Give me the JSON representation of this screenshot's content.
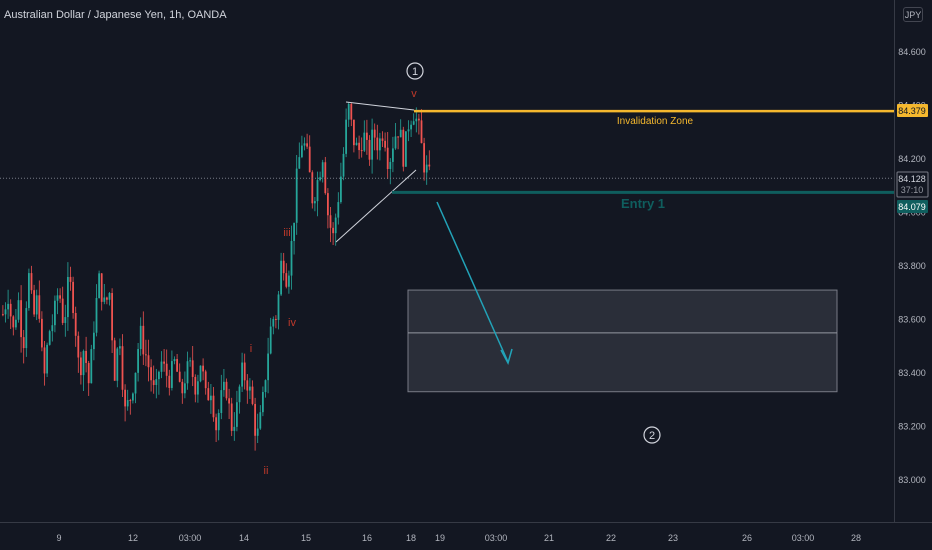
{
  "header": {
    "title": "Australian Dollar / Japanese Yen, 1h, OANDA",
    "currency_badge": "JPY"
  },
  "chart_data": {
    "type": "candlestick",
    "title": "Australian Dollar / Japanese Yen, 1h, OANDA",
    "ylim": [
      82.93,
      84.73
    ],
    "y_ticks": [
      "84.600",
      "84.400",
      "84.200",
      "84.000",
      "83.800",
      "83.600",
      "83.400",
      "83.200",
      "83.000"
    ],
    "y_tick_values": [
      84.6,
      84.4,
      84.2,
      84.0,
      83.8,
      83.6,
      83.4,
      83.2,
      83.0
    ],
    "x_ticks": [
      "9",
      "12",
      "03:00",
      "14",
      "15",
      "16",
      "18",
      "19",
      "03:00",
      "21",
      "22",
      "23",
      "26",
      "03:00",
      "28"
    ],
    "current_price": {
      "value": "84.128",
      "countdown": "37:10"
    },
    "levels": [
      {
        "name": "Invalidation Zone",
        "value": 84.379,
        "label": "84.379",
        "color": "#f5b82e"
      },
      {
        "name": "Entry 1",
        "value": 84.079,
        "label": "84.079",
        "color": "#0f5e5e"
      }
    ],
    "target_zone": {
      "upper": 83.71,
      "middle": 83.55,
      "lower": 83.33
    },
    "wave_labels": [
      "i",
      "ii",
      "iii",
      "iv",
      "v"
    ],
    "wave_markers": [
      "1",
      "2"
    ],
    "series_colors": {
      "up": "#26a69a",
      "down": "#ef5350"
    },
    "path": [
      83.62,
      83.7,
      83.55,
      83.68,
      83.5,
      83.78,
      83.6,
      83.7,
      83.35,
      83.55,
      83.6,
      83.72,
      83.58,
      83.75,
      83.65,
      83.4,
      83.5,
      83.35,
      83.6,
      83.75,
      83.65,
      83.7,
      83.4,
      83.55,
      83.25,
      83.3,
      83.4,
      83.55,
      83.48,
      83.4,
      83.3,
      83.45,
      83.4,
      83.38,
      83.45,
      83.3,
      83.4,
      83.42,
      83.35,
      83.45,
      83.3,
      83.35,
      83.2,
      83.3,
      83.35,
      83.2,
      83.25,
      83.4,
      83.38,
      83.3,
      83.15,
      83.25,
      83.45,
      83.6,
      83.62,
      83.85,
      83.75,
      83.9,
      84.15,
      84.28,
      84.2,
      84.05,
      84.12,
      84.22,
      84.0,
      83.9,
      84.05,
      84.2,
      84.4,
      84.28,
      84.22,
      84.3,
      84.2,
      84.3,
      84.25,
      84.32,
      84.18,
      84.28,
      84.32,
      84.2,
      84.35,
      84.38,
      84.3,
      84.18,
      84.13
    ]
  },
  "annotations": {
    "invalidation_label": "Invalidation Zone",
    "entry_label": "Entry 1"
  }
}
